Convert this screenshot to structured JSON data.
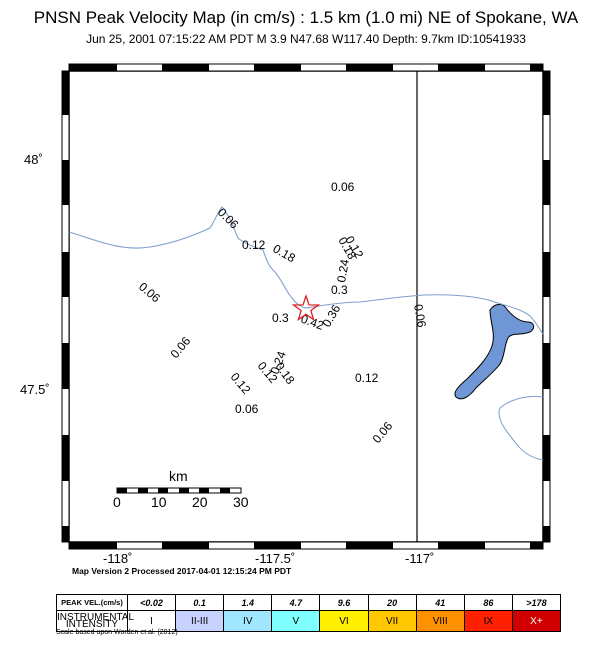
{
  "header": {
    "title": "PNSN Peak Velocity Map (in cm/s) : 1.5 km (1.0 mi) NE of Spokane, WA",
    "subtitle": "Jun 25, 2001 07:15:22 AM PDT   M 3.9   N47.68 W117.40   Depth: 9.7km   ID:10541933"
  },
  "map": {
    "lat_labels": [
      "48˚",
      "47.5˚"
    ],
    "lon_labels": [
      "-118˚",
      "-117.5˚",
      "-117˚"
    ],
    "scale_bar": {
      "unit": "km",
      "ticks": [
        "0",
        "10",
        "20",
        "30"
      ]
    },
    "epicenter": {
      "lat": 47.68,
      "lon": -117.4
    },
    "contours": [
      "0.06",
      "0.06",
      "0.06",
      "0.06",
      "0.06",
      "0.06",
      "0.06",
      "0.12",
      "0.12",
      "0.12",
      "0.12",
      "0.12",
      "0.18",
      "0.18",
      "0.18",
      "0.24",
      "0.24",
      "0.3",
      "0.3",
      "0.36",
      "0.42"
    ],
    "colors": {
      "water": "#6f97d6",
      "river": "#7f9fcf",
      "epicenter": "#e02020"
    }
  },
  "footer": {
    "version_note": "Map Version 2 Processed 2017-04-01 12:15:24 PM PDT",
    "scale_note": "Scale based upon Worden et al. (2012)"
  },
  "legend": {
    "row1_header": "PEAK VEL.(cm/s)",
    "row2_header": "INSTRUMENTAL INTENSITY",
    "velocities": [
      "<0.02",
      "0.1",
      "1.4",
      "4.7",
      "9.6",
      "20",
      "41",
      "86",
      ">178"
    ],
    "intensities": [
      "I",
      "II-III",
      "IV",
      "V",
      "VI",
      "VII",
      "VIII",
      "IX",
      "X+"
    ],
    "colors": [
      "#ffffff",
      "#bfccff",
      "#a0e6ff",
      "#80ffff",
      "#7aff93",
      "#ffff00",
      "#ffc800",
      "#ff9100",
      "#ff0000",
      "#c80000"
    ]
  }
}
